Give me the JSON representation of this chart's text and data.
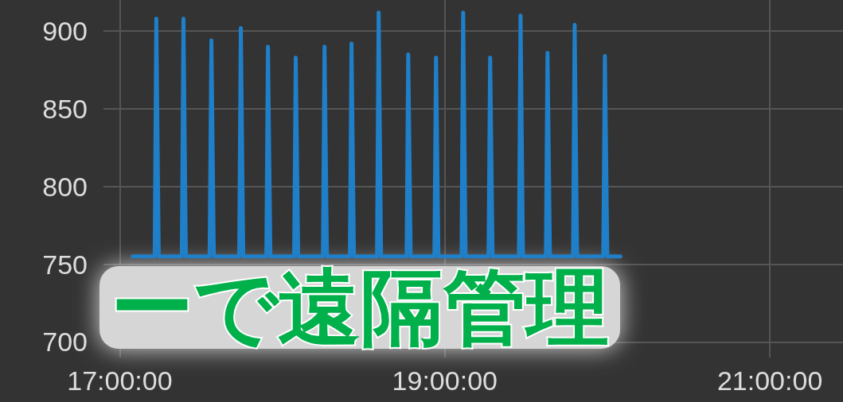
{
  "chart_data": {
    "type": "line",
    "annotations": [
      "ーで遠隔管理"
    ],
    "x": [
      17.08,
      17.215,
      17.225,
      17.24,
      17.382,
      17.392,
      17.407,
      17.553,
      17.564,
      17.579,
      17.735,
      17.745,
      17.76,
      17.902,
      17.912,
      17.927,
      18.073,
      18.083,
      18.098,
      18.25,
      18.26,
      18.275,
      18.416,
      18.426,
      18.441,
      18.583,
      18.593,
      18.608,
      18.765,
      18.775,
      18.79,
      18.936,
      18.946,
      18.961,
      19.103,
      19.113,
      19.128,
      19.269,
      19.279,
      19.294,
      19.456,
      19.466,
      19.481,
      19.622,
      19.632,
      19.647,
      19.789,
      19.799,
      19.814,
      19.975,
      19.985,
      20.0,
      20.08
    ],
    "series": [
      {
        "color": "#1f7fc8",
        "values": [
          755,
          755,
          908,
          755,
          755,
          908,
          755,
          755,
          894,
          755,
          755,
          902,
          755,
          755,
          890,
          755,
          755,
          883,
          755,
          755,
          890,
          755,
          755,
          892,
          755,
          755,
          912,
          755,
          755,
          885,
          755,
          755,
          883,
          755,
          755,
          912,
          755,
          755,
          883,
          755,
          755,
          910,
          755,
          755,
          886,
          755,
          755,
          904,
          755,
          755,
          884,
          755,
          755
        ]
      }
    ],
    "xlim": [
      16.9,
      21.45
    ],
    "xticks": [
      {
        "value": 17,
        "label": "17:00:00"
      },
      {
        "value": 19,
        "label": "19:00:00"
      },
      {
        "value": 21,
        "label": "21:00:00"
      }
    ],
    "ylim": [
      690,
      920
    ],
    "yticks": [
      700,
      750,
      800,
      850,
      900
    ],
    "grid": true,
    "marker": "none",
    "line_style": "solid"
  }
}
